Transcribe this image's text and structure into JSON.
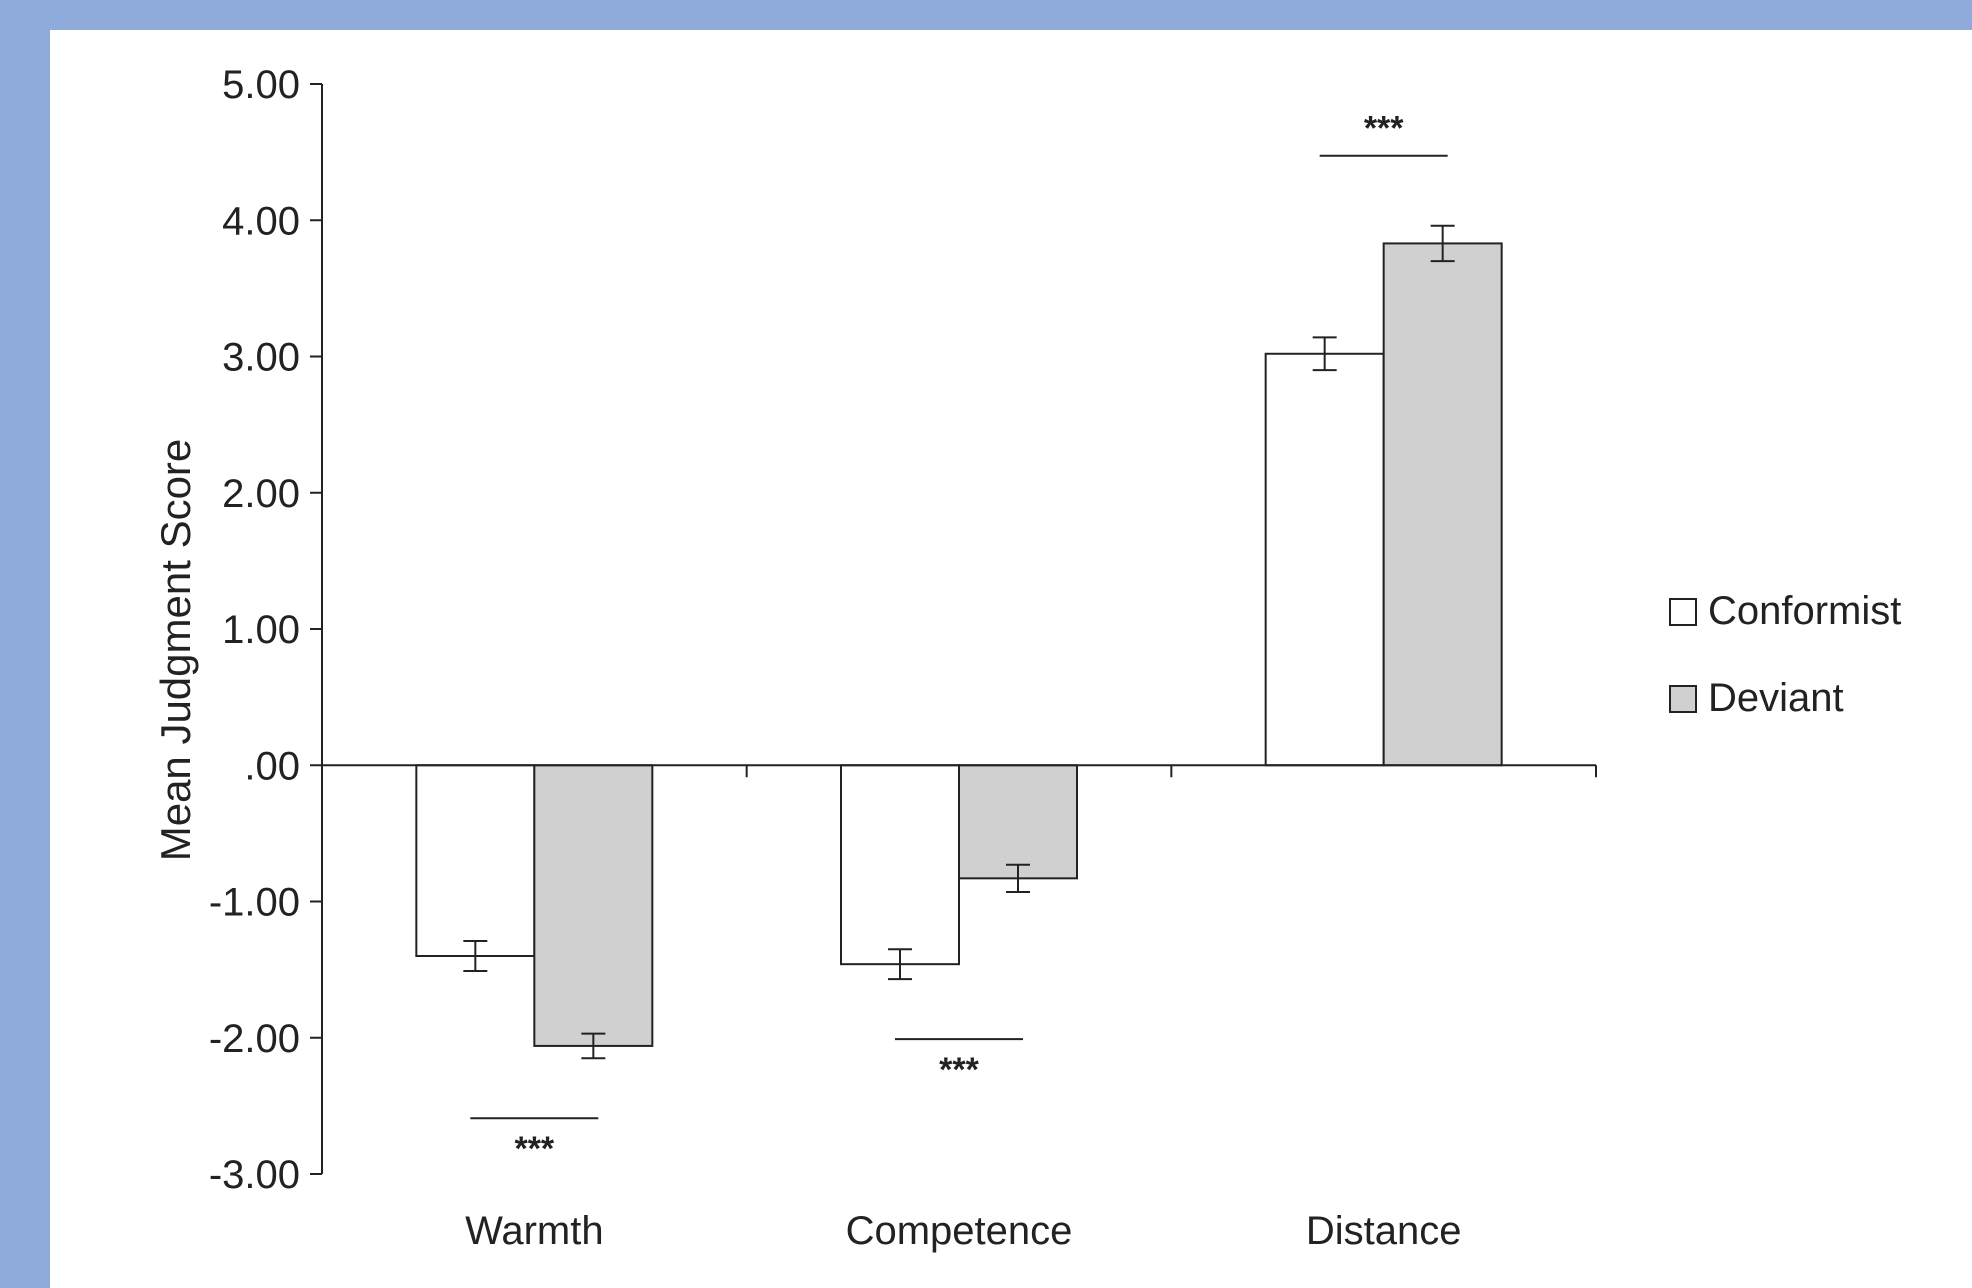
{
  "colors": {
    "background": "#8fabdc",
    "panel": "#ffffff",
    "conformist_fill": "#ffffff",
    "deviant_fill": "#d0d0d0",
    "stroke": "#222222"
  },
  "chart_data": {
    "type": "bar",
    "categories": [
      "Warmth",
      "Competence",
      "Distance"
    ],
    "series": [
      {
        "name": "Conformist",
        "values": [
          -1.4,
          -1.46,
          3.02
        ],
        "errors": [
          0.11,
          0.11,
          0.12
        ]
      },
      {
        "name": "Deviant",
        "values": [
          -2.06,
          -0.83,
          3.83
        ],
        "errors": [
          0.09,
          0.1,
          0.13
        ]
      }
    ],
    "ylabel": "Mean Judgment Score",
    "xlabel": "",
    "ylim": [
      -3,
      5
    ],
    "yticks": [
      5,
      4,
      3,
      2,
      1,
      0,
      -1,
      -2,
      -3
    ],
    "ytick_labels": [
      "5.00",
      "4.00",
      "3.00",
      "2.00",
      "1.00",
      ".00",
      "-1.00",
      "-2.00",
      "-3.00"
    ],
    "significance": [
      {
        "category": "Warmth",
        "label": "***",
        "position": "below"
      },
      {
        "category": "Competence",
        "label": "***",
        "position": "below"
      },
      {
        "category": "Distance",
        "label": "***",
        "position": "above"
      }
    ],
    "legend": {
      "position": "right",
      "entries": [
        "Conformist",
        "Deviant"
      ]
    },
    "grid": false
  }
}
